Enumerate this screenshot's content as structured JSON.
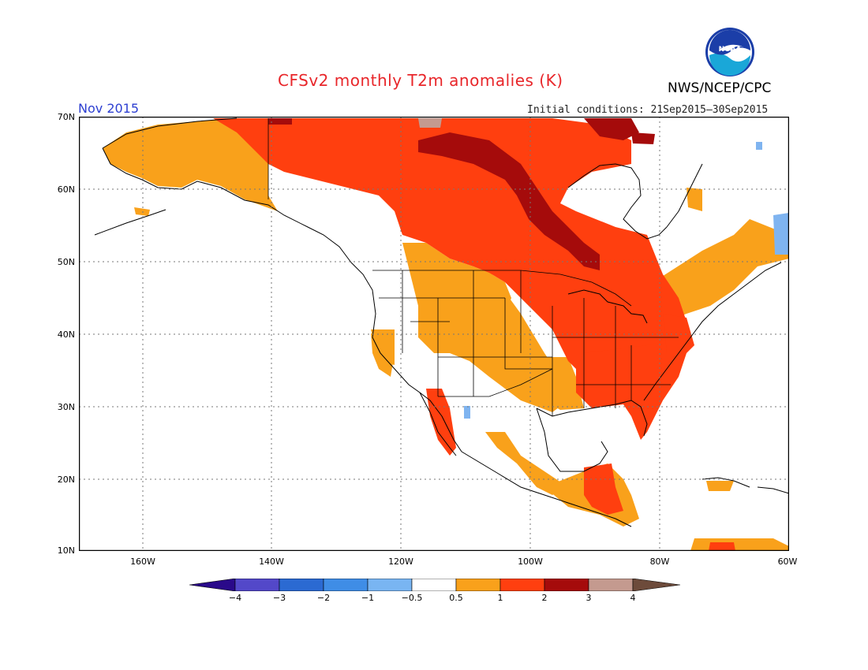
{
  "header": {
    "title": "CFSv2 monthly T2m anomalies (K)",
    "org": "NWS/NCEP/CPC",
    "month": "Nov 2015",
    "initial_conditions": "Initial conditions: 21Sep2015–30Sep2015",
    "logo_text": "NOAA"
  },
  "map": {
    "region": "North America",
    "lat_labels": [
      "70N",
      "60N",
      "50N",
      "40N",
      "30N",
      "20N",
      "10N"
    ],
    "lon_labels": [
      "160W",
      "140W",
      "120W",
      "100W",
      "80W",
      "60W"
    ],
    "lat_range": [
      10,
      70
    ],
    "lon_range": [
      -171,
      -60
    ],
    "colors": {
      "ocean": "#ffffff",
      "below_05": "#ffffff",
      "c05_1": "#f9a11b",
      "c1_2": "#ff3f0f",
      "c2_3": "#a50b0b",
      "c3_4": "#c49a8f",
      "cool_m1_m05": "#7fb4f0"
    }
  },
  "colorbar": {
    "labels": [
      "−4",
      "−3",
      "−2",
      "−1",
      "−0.5",
      "0.5",
      "1",
      "2",
      "3",
      "4"
    ],
    "colors": [
      "#2a0a8a",
      "#5348c9",
      "#2b6ad2",
      "#3f8de6",
      "#79b5f2",
      "#ffffff",
      "#f9a11b",
      "#ff3f0f",
      "#a50b0b",
      "#c49a8f",
      "#6d4b3b"
    ]
  }
}
